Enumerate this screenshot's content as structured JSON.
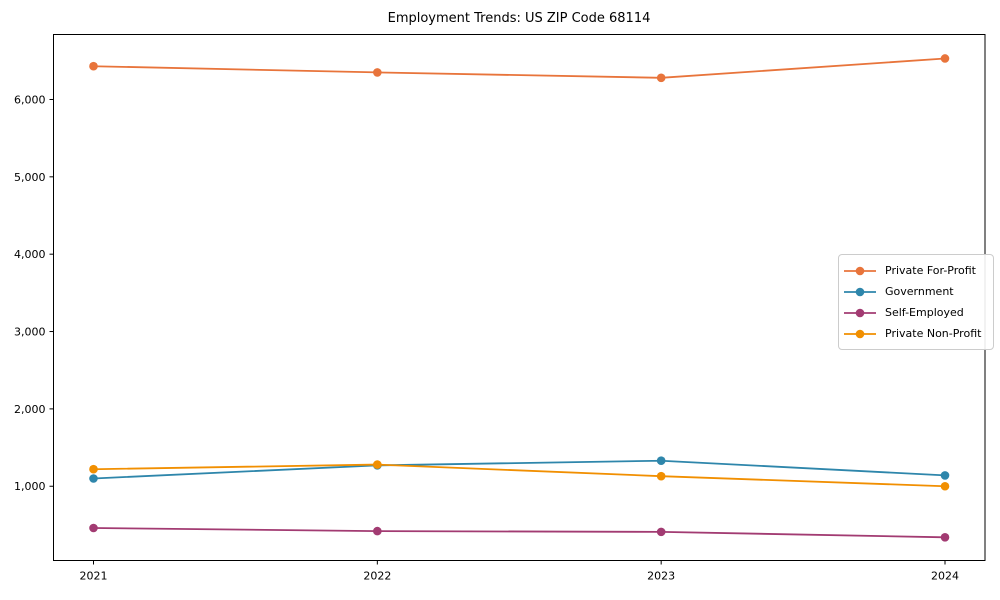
{
  "figure": {
    "background": "#ffffff",
    "axis_color": "#000000",
    "text_color": "#000000"
  },
  "chart_data": {
    "type": "line",
    "title": "Employment Trends: US ZIP Code 68114",
    "xlabel": "",
    "ylabel": "",
    "x": [
      "2021",
      "2022",
      "2023",
      "2024"
    ],
    "series": [
      {
        "name": "Private For-Profit",
        "color": "#E8743B",
        "values": [
          6430,
          6350,
          6280,
          6530
        ]
      },
      {
        "name": "Government",
        "color": "#2E86AB",
        "values": [
          1100,
          1270,
          1330,
          1140
        ]
      },
      {
        "name": "Self-Employed",
        "color": "#A23B72",
        "values": [
          460,
          420,
          410,
          340
        ]
      },
      {
        "name": "Private Non-Profit",
        "color": "#F18F01",
        "values": [
          1220,
          1280,
          1130,
          1000
        ]
      }
    ],
    "yticks": [
      1000,
      2000,
      3000,
      4000,
      5000,
      6000
    ],
    "ytick_labels": [
      "1,000",
      "2,000",
      "3,000",
      "4,000",
      "5,000",
      "6,000"
    ],
    "ylim": [
      40,
      6840
    ],
    "grid": false,
    "marker": "circle",
    "legend": {
      "position": "center-right",
      "border_color": "#cccccc",
      "background": "#ffffff"
    }
  }
}
